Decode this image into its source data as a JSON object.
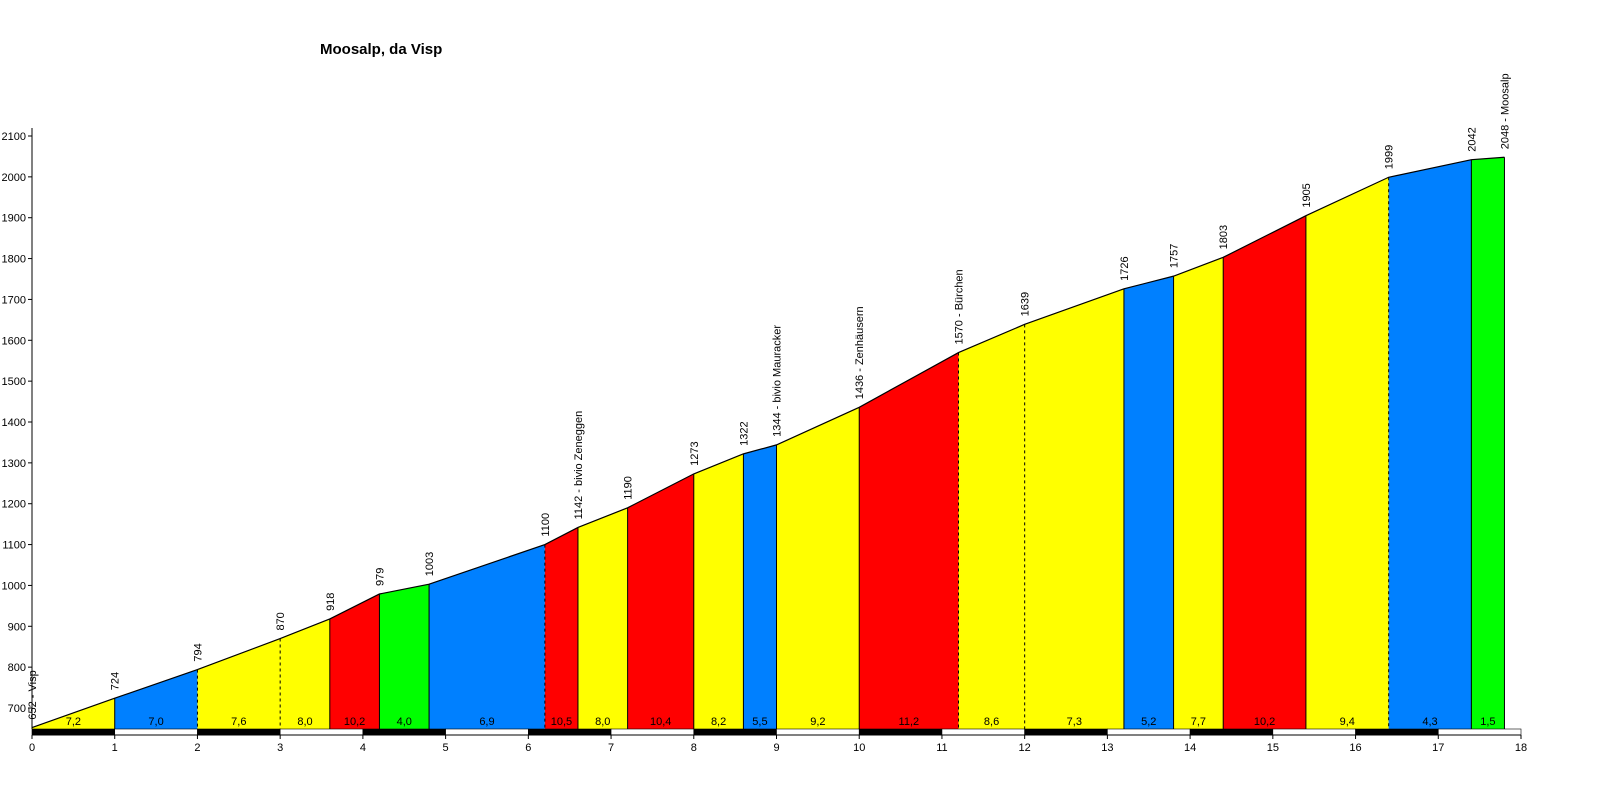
{
  "chart_data": {
    "type": "area",
    "title": "Moosalp, da Visp",
    "xlim": [
      0,
      18
    ],
    "ylim": [
      610,
      2100
    ],
    "x_ticks": [
      "0",
      "1",
      "2",
      "3",
      "4",
      "5",
      "6",
      "7",
      "8",
      "9",
      "10",
      "11",
      "12",
      "13",
      "14",
      "15",
      "16",
      "17",
      "18"
    ],
    "y_ticks": [
      "700",
      "800",
      "900",
      "1000",
      "1100",
      "1200",
      "1300",
      "1400",
      "1500",
      "1600",
      "1700",
      "1800",
      "1900",
      "2000",
      "2100"
    ],
    "y_tick_values": [
      700,
      800,
      900,
      1000,
      1100,
      1200,
      1300,
      1400,
      1500,
      1600,
      1700,
      1800,
      1900,
      2000,
      2100
    ],
    "profile": [
      {
        "x": 0,
        "elev": 652,
        "label": "652 - Visp"
      },
      {
        "x": 1,
        "elev": 724,
        "label": "724"
      },
      {
        "x": 2,
        "elev": 794,
        "label": "794"
      },
      {
        "x": 3,
        "elev": 870,
        "label": "870"
      },
      {
        "x": 3.6,
        "elev": 918,
        "label": "918"
      },
      {
        "x": 4.2,
        "elev": 979,
        "label": "979"
      },
      {
        "x": 4.8,
        "elev": 1003,
        "label": "1003"
      },
      {
        "x": 6.2,
        "elev": 1100,
        "label": "1100"
      },
      {
        "x": 6.6,
        "elev": 1142,
        "label": "1142 - bivio Zeneggen"
      },
      {
        "x": 7.2,
        "elev": 1190,
        "label": "1190"
      },
      {
        "x": 8.0,
        "elev": 1273,
        "label": "1273"
      },
      {
        "x": 8.6,
        "elev": 1322,
        "label": "1322"
      },
      {
        "x": 9.0,
        "elev": 1344,
        "label": "1344 - bivio Mauracker"
      },
      {
        "x": 10.0,
        "elev": 1436,
        "label": "1436 - Zenhäusern"
      },
      {
        "x": 11.2,
        "elev": 1570,
        "label": "1570 - Bürchen"
      },
      {
        "x": 12.0,
        "elev": 1639,
        "label": "1639"
      },
      {
        "x": 13.2,
        "elev": 1726,
        "label": "1726"
      },
      {
        "x": 13.8,
        "elev": 1757,
        "label": "1757"
      },
      {
        "x": 14.4,
        "elev": 1803,
        "label": "1803"
      },
      {
        "x": 15.4,
        "elev": 1905,
        "label": "1905"
      },
      {
        "x": 16.4,
        "elev": 1999,
        "label": "1999"
      },
      {
        "x": 17.4,
        "elev": 2042,
        "label": "2042"
      },
      {
        "x": 17.8,
        "elev": 2048,
        "label": "2048 - Moosalp"
      }
    ],
    "segments": [
      {
        "from": 0,
        "to": 1,
        "grade": "7,2",
        "color": "#FFFF00",
        "dashed_end": false
      },
      {
        "from": 1,
        "to": 2,
        "grade": "7,0",
        "color": "#0080FF",
        "dashed_end": true
      },
      {
        "from": 2,
        "to": 3,
        "grade": "7,6",
        "color": "#FFFF00",
        "dashed_end": true
      },
      {
        "from": 3,
        "to": 3.6,
        "grade": "8,0",
        "color": "#FFFF00",
        "dashed_end": false
      },
      {
        "from": 3.6,
        "to": 4.2,
        "grade": "10,2",
        "color": "#FF0000",
        "dashed_end": false
      },
      {
        "from": 4.2,
        "to": 4.8,
        "grade": "4,0",
        "color": "#00FF00",
        "dashed_end": false
      },
      {
        "from": 4.8,
        "to": 6.2,
        "grade": "6,9",
        "color": "#0080FF",
        "dashed_end": true
      },
      {
        "from": 6.2,
        "to": 6.6,
        "grade": "10,5",
        "color": "#FF0000",
        "dashed_end": false
      },
      {
        "from": 6.6,
        "to": 7.2,
        "grade": "8,0",
        "color": "#FFFF00",
        "dashed_end": false
      },
      {
        "from": 7.2,
        "to": 8.0,
        "grade": "10,4",
        "color": "#FF0000",
        "dashed_end": false
      },
      {
        "from": 8.0,
        "to": 8.6,
        "grade": "8,2",
        "color": "#FFFF00",
        "dashed_end": false
      },
      {
        "from": 8.6,
        "to": 9.0,
        "grade": "5,5",
        "color": "#0080FF",
        "dashed_end": false
      },
      {
        "from": 9.0,
        "to": 10.0,
        "grade": "9,2",
        "color": "#FFFF00",
        "dashed_end": false
      },
      {
        "from": 10.0,
        "to": 11.2,
        "grade": "11,2",
        "color": "#FF0000",
        "dashed_end": true
      },
      {
        "from": 11.2,
        "to": 12.0,
        "grade": "8,6",
        "color": "#FFFF00",
        "dashed_end": true
      },
      {
        "from": 12.0,
        "to": 13.2,
        "grade": "7,3",
        "color": "#FFFF00",
        "dashed_end": false
      },
      {
        "from": 13.2,
        "to": 13.8,
        "grade": "5,2",
        "color": "#0080FF",
        "dashed_end": false
      },
      {
        "from": 13.8,
        "to": 14.4,
        "grade": "7,7",
        "color": "#FFFF00",
        "dashed_end": false
      },
      {
        "from": 14.4,
        "to": 15.4,
        "grade": "10,2",
        "color": "#FF0000",
        "dashed_end": false
      },
      {
        "from": 15.4,
        "to": 16.4,
        "grade": "9,4",
        "color": "#FFFF00",
        "dashed_end": true
      },
      {
        "from": 16.4,
        "to": 17.4,
        "grade": "4,3",
        "color": "#0080FF",
        "dashed_end": false
      },
      {
        "from": 17.4,
        "to": 17.8,
        "grade": "1,5",
        "color": "#00FF00",
        "dashed_end": false
      }
    ]
  }
}
